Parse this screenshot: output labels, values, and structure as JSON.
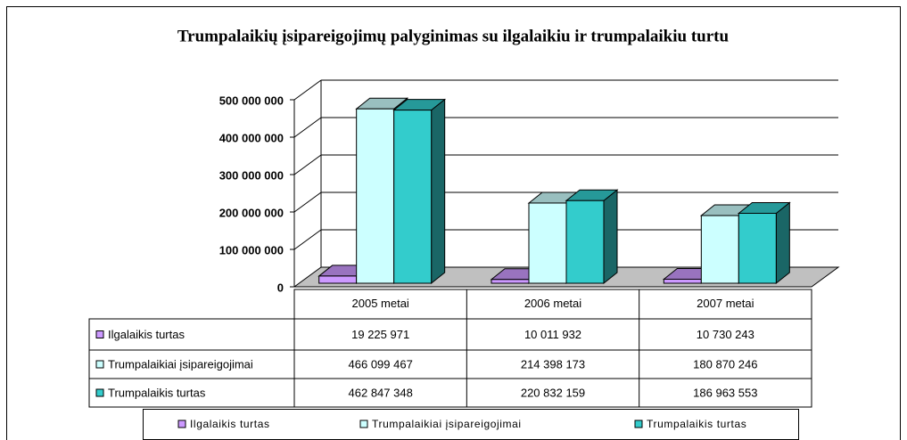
{
  "chart_data": {
    "type": "bar3d",
    "title": "Trumpalaikių įsipareigojimų palyginimas su ilgalaikiu ir trumpalaikiu turtu",
    "categories": [
      "2005 metai",
      "2006 metai",
      "2007 metai"
    ],
    "series": [
      {
        "name": "Ilgalaikis turtas",
        "color": "#cc99ff",
        "values": [
          19225971,
          10011932,
          10730243
        ],
        "value_labels": [
          "19 225 971",
          "10 011 932",
          "10 730 243"
        ]
      },
      {
        "name": "Trumpalaikiai įsipareigojimai",
        "color": "#ccffff",
        "values": [
          466099467,
          214398173,
          180870246
        ],
        "value_labels": [
          "466 099 467",
          "214 398 173",
          "180 870 246"
        ]
      },
      {
        "name": "Trumpalaikis turtas",
        "color": "#33cccc",
        "values": [
          462847348,
          220832159,
          186963553
        ],
        "value_labels": [
          "462 847 348",
          "220 832 159",
          "186 963 553"
        ]
      }
    ],
    "ylim": [
      0,
      500000000
    ],
    "yticks": [
      0,
      {
        "value": 100000000,
        "label": "100 000 000"
      },
      {
        "value": 200000000,
        "label": "200 000 000"
      },
      {
        "value": 300000000,
        "label": "300 000 000"
      },
      {
        "value": 400000000,
        "label": "400 000 000"
      },
      {
        "value": 500000000,
        "label": "500 000 000"
      }
    ],
    "grid": true,
    "legend": "bottom"
  }
}
